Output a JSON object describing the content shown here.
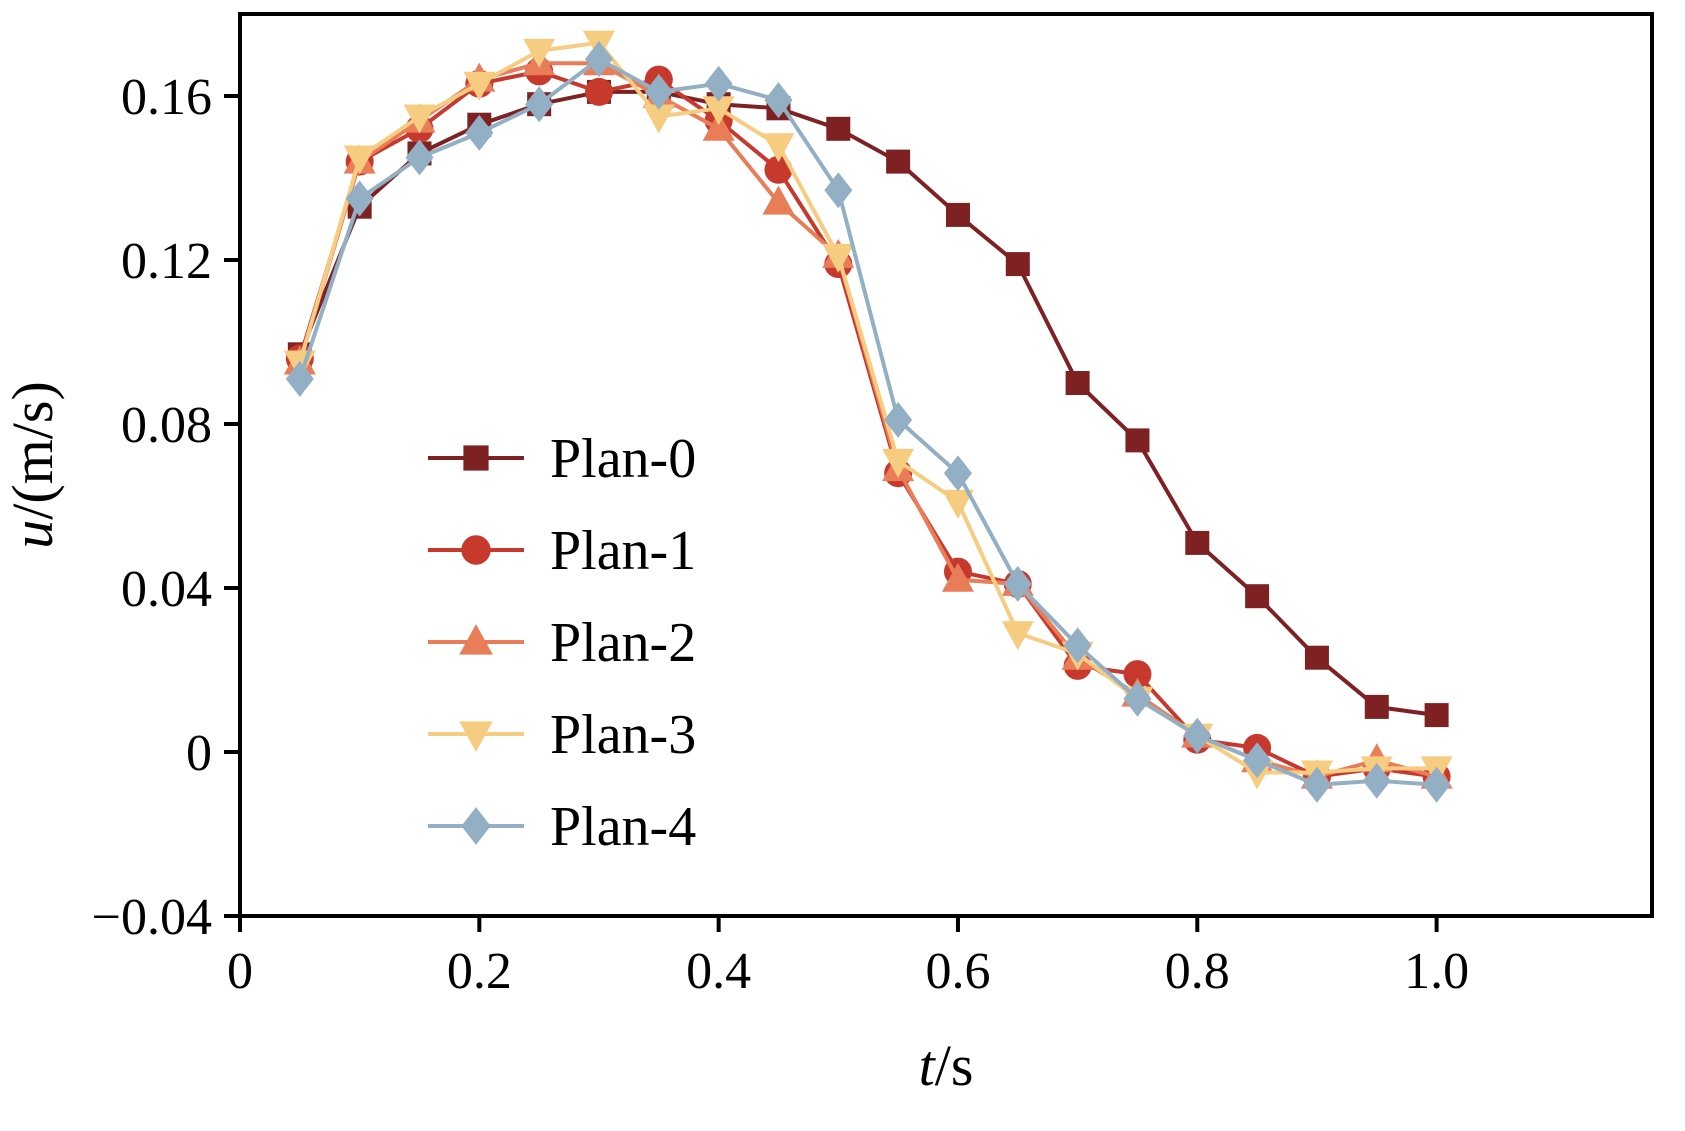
{
  "chart_data": {
    "type": "line",
    "title": "",
    "xlabel": "t/s",
    "xlabel_parts": {
      "italic": "t",
      "rest": "/s"
    },
    "ylabel": "u/(m/s)",
    "ylabel_parts": {
      "italic": "u",
      "rest": "/(m/s)"
    },
    "xlim": [
      0,
      1.18
    ],
    "ylim": [
      -0.04,
      0.18
    ],
    "grid": false,
    "legend_position": "inside-center-left",
    "xticks": [
      {
        "value": 0,
        "label": "0"
      },
      {
        "value": 0.2,
        "label": "0.2"
      },
      {
        "value": 0.4,
        "label": "0.4"
      },
      {
        "value": 0.6,
        "label": "0.6"
      },
      {
        "value": 0.8,
        "label": "0.8"
      },
      {
        "value": 1.0,
        "label": "1.0"
      }
    ],
    "yticks": [
      {
        "value": -0.04,
        "label": "−0.04"
      },
      {
        "value": 0,
        "label": "0"
      },
      {
        "value": 0.04,
        "label": "0.04"
      },
      {
        "value": 0.08,
        "label": "0.08"
      },
      {
        "value": 0.12,
        "label": "0.12"
      },
      {
        "value": 0.16,
        "label": "0.16"
      }
    ],
    "x": [
      0.05,
      0.1,
      0.15,
      0.2,
      0.25,
      0.3,
      0.35,
      0.4,
      0.45,
      0.5,
      0.55,
      0.6,
      0.65,
      0.7,
      0.75,
      0.8,
      0.85,
      0.9,
      0.95,
      1.0
    ],
    "series": [
      {
        "name": "Plan-0",
        "marker": "square",
        "color": "#7e2123",
        "values": [
          0.097,
          0.133,
          0.146,
          0.153,
          0.158,
          0.161,
          0.161,
          0.158,
          0.157,
          0.152,
          0.144,
          0.131,
          0.119,
          0.09,
          0.076,
          0.051,
          0.038,
          0.023,
          0.011,
          0.009
        ]
      },
      {
        "name": "Plan-1",
        "marker": "circle",
        "color": "#c8392d",
        "values": [
          0.096,
          0.144,
          0.152,
          0.163,
          0.166,
          0.161,
          0.164,
          0.154,
          0.142,
          0.119,
          0.068,
          0.044,
          0.041,
          0.021,
          0.019,
          0.003,
          0.001,
          -0.006,
          -0.004,
          -0.006
        ]
      },
      {
        "name": "Plan-2",
        "marker": "triangle-up",
        "color": "#e87d58",
        "values": [
          0.095,
          0.144,
          0.154,
          0.164,
          0.168,
          0.168,
          0.16,
          0.152,
          0.134,
          0.121,
          0.069,
          0.042,
          0.041,
          0.023,
          0.014,
          0.004,
          -0.002,
          -0.006,
          -0.002,
          -0.006
        ]
      },
      {
        "name": "Plan-3",
        "marker": "triangle-down",
        "color": "#f6cc80",
        "values": [
          0.095,
          0.145,
          0.155,
          0.163,
          0.171,
          0.173,
          0.155,
          0.157,
          0.148,
          0.121,
          0.071,
          0.061,
          0.029,
          0.024,
          0.013,
          0.004,
          -0.005,
          -0.005,
          -0.004,
          -0.004
        ]
      },
      {
        "name": "Plan-4",
        "marker": "diamond",
        "color": "#93afc4",
        "values": [
          0.091,
          0.135,
          0.145,
          0.151,
          0.158,
          0.169,
          0.161,
          0.163,
          0.159,
          0.137,
          0.081,
          0.068,
          0.041,
          0.026,
          0.013,
          0.004,
          -0.002,
          -0.008,
          -0.007,
          -0.008
        ]
      }
    ],
    "axis_color": "#000000",
    "background_color": "#ffffff"
  }
}
